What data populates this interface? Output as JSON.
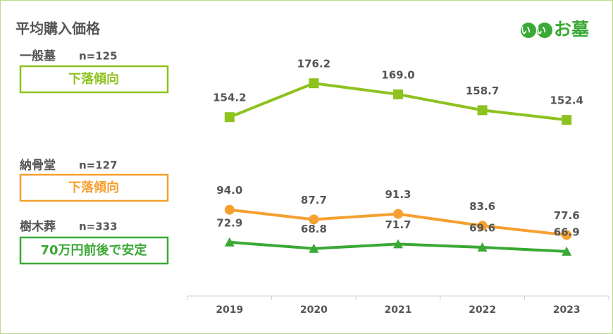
{
  "logo": {
    "mark": "いい",
    "text": "お墓"
  },
  "chart_data": {
    "type": "line",
    "title": "平均購入価格",
    "categories": [
      "2019",
      "2020",
      "2021",
      "2022",
      "2023"
    ],
    "ylim": [
      38,
      212
    ],
    "series": [
      {
        "name": "一般墓",
        "sample": "n=125",
        "note": "下落傾向",
        "color": "#8dc21f",
        "marker": "square",
        "values": [
          154.2,
          176.2,
          169.0,
          158.7,
          152.4
        ],
        "value_labels": [
          "154.2",
          "176.2",
          "169.0",
          "158.7",
          "152.4"
        ]
      },
      {
        "name": "納骨堂",
        "sample": "n=127",
        "note": "下落傾向",
        "color": "#f5a030",
        "marker": "circle",
        "values": [
          94.0,
          87.7,
          91.3,
          83.6,
          77.6
        ],
        "value_labels": [
          "94.0",
          "87.7",
          "91.3",
          "83.6",
          "77.6"
        ]
      },
      {
        "name": "樹木葬",
        "sample": "n=333",
        "note": "70万円前後で安定",
        "color": "#3aa935",
        "marker": "triangle",
        "values": [
          72.9,
          68.8,
          71.7,
          69.6,
          66.9
        ],
        "value_labels": [
          "72.9",
          "68.8",
          "71.7",
          "69.6",
          "66.9"
        ]
      }
    ]
  }
}
